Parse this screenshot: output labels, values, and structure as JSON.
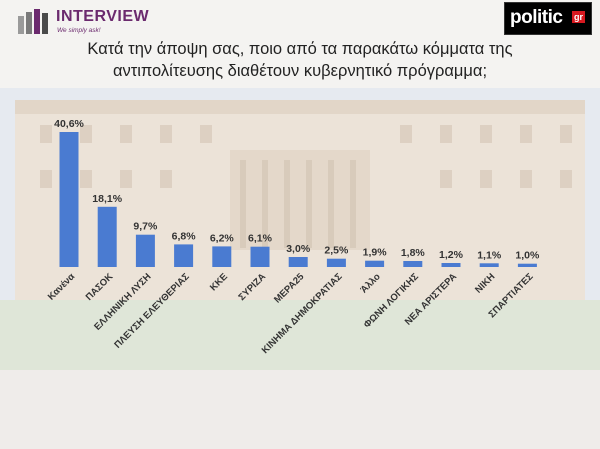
{
  "header": {
    "brand_left": "INTERVIEW",
    "brand_left_tagline": "We simply ask!",
    "brand_right": "politic",
    "brand_right_suffix": "gr"
  },
  "title_line1": "Κατά την άποψη σας, ποιο από τα παρακάτω κόμματα της",
  "title_line2": "αντιπολίτευσης διαθέτουν κυβερνητικό πρόγραμμα;",
  "colors": {
    "bar": "#4a7bd1",
    "brand_purple": "#6b2a6e",
    "brand_red": "#d71920"
  },
  "chart_data": {
    "type": "bar",
    "title": "Κατά την άποψη σας, ποιο από τα παρακάτω κόμματα της αντιπολίτευσης διαθέτουν κυβερνητικό πρόγραμμα;",
    "categories": [
      "Κανένα",
      "ΠΑΣΟΚ",
      "ΕΛΛΗΝΙΚΗ ΛΥΣΗ",
      "ΠΛΕΥΣΗ ΕΛΕΥΘΕΡΙΑΣ",
      "ΚΚΕ",
      "ΣΥΡΙΖΑ",
      "ΜΕΡΑ25",
      "ΚΙΝΗΜΑ ΔΗΜΟΚΡΑΤΙΑΣ",
      "Άλλο",
      "ΦΩΝΗ ΛΟΓΙΚΗΣ",
      "ΝΕΑ ΑΡΙΣΤΕΡΑ",
      "ΝΙΚΗ",
      "ΣΠΑΡΤΙΑΤΕΣ"
    ],
    "values": [
      40.6,
      18.1,
      9.7,
      6.8,
      6.2,
      6.1,
      3.0,
      2.5,
      1.9,
      1.8,
      1.2,
      1.1,
      1.0
    ],
    "labels": [
      "40,6%",
      "18,1%",
      "9,7%",
      "6,8%",
      "6,2%",
      "6,1%",
      "3,0%",
      "2,5%",
      "1,9%",
      "1,8%",
      "1,2%",
      "1,1%",
      "1,0%"
    ],
    "xlabel": "",
    "ylabel": "",
    "ylim": [
      0,
      40.6
    ],
    "grid": false,
    "legend": "none"
  }
}
